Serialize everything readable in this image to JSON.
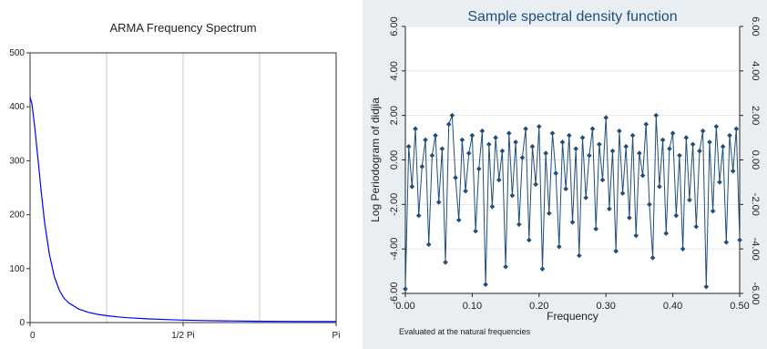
{
  "chart_data": [
    {
      "type": "line",
      "title": "ARMA Frequency Spectrum",
      "xlabel": "",
      "ylabel": "",
      "x_tick_labels": [
        "0",
        "1/2 Pi",
        "Pi"
      ],
      "y_ticks": [
        0,
        100,
        200,
        300,
        400,
        500
      ],
      "ylim": [
        0,
        500
      ],
      "xlim": [
        0,
        3.1416
      ],
      "grid": "vertical",
      "line_color": "#0000ff",
      "series": [
        {
          "x": [
            0,
            0.02,
            0.05,
            0.08,
            0.11,
            0.15,
            0.2,
            0.25,
            0.3,
            0.35,
            0.4,
            0.5,
            0.6,
            0.7,
            0.8,
            0.9,
            1.0,
            1.2,
            1.4,
            1.57,
            1.8,
            2.0,
            2.3,
            2.6,
            2.9,
            3.1416
          ],
          "y": [
            418,
            405,
            360,
            305,
            250,
            185,
            125,
            85,
            60,
            45,
            36,
            25,
            19,
            15,
            12.5,
            10.5,
            9,
            7,
            5.5,
            4.5,
            3.8,
            3.2,
            2.6,
            2.2,
            2,
            2
          ]
        }
      ]
    },
    {
      "type": "scatter",
      "title": "Sample spectral density function",
      "xlabel": "Frequency",
      "ylabel": "Log Periodogram of didjia",
      "note": "Evaluated at the natural frequencies",
      "x_tick_labels": [
        "0.00",
        "0.10",
        "0.20",
        "0.30",
        "0.40",
        "0.50"
      ],
      "y_tick_labels": [
        "-6.00",
        "-4.00",
        "-2.00",
        "0.00",
        "2.00",
        "4.00",
        "6.00"
      ],
      "xlim": [
        0,
        0.5
      ],
      "ylim": [
        -6,
        6
      ],
      "grid": "horizontal",
      "marker": "diamond",
      "connected": true,
      "series_color": "#1f4e79",
      "series": [
        {
          "x": [
            0.0,
            0.005,
            0.01,
            0.015,
            0.02,
            0.025,
            0.03,
            0.035,
            0.04,
            0.045,
            0.05,
            0.055,
            0.06,
            0.065,
            0.07,
            0.075,
            0.08,
            0.085,
            0.09,
            0.095,
            0.1,
            0.105,
            0.11,
            0.115,
            0.12,
            0.125,
            0.13,
            0.135,
            0.14,
            0.145,
            0.15,
            0.155,
            0.16,
            0.165,
            0.17,
            0.175,
            0.18,
            0.185,
            0.19,
            0.195,
            0.2,
            0.205,
            0.21,
            0.215,
            0.22,
            0.225,
            0.23,
            0.235,
            0.24,
            0.245,
            0.25,
            0.255,
            0.26,
            0.265,
            0.27,
            0.275,
            0.28,
            0.285,
            0.29,
            0.295,
            0.3,
            0.305,
            0.31,
            0.315,
            0.32,
            0.325,
            0.33,
            0.335,
            0.34,
            0.345,
            0.35,
            0.355,
            0.36,
            0.365,
            0.37,
            0.375,
            0.38,
            0.385,
            0.39,
            0.395,
            0.4,
            0.405,
            0.41,
            0.415,
            0.42,
            0.425,
            0.43,
            0.435,
            0.44,
            0.445,
            0.45,
            0.455,
            0.46,
            0.465,
            0.47,
            0.475,
            0.48,
            0.485,
            0.49,
            0.495,
            0.5
          ],
          "y": [
            -5.8,
            0.6,
            -1.2,
            1.4,
            -2.5,
            -0.3,
            0.9,
            -3.8,
            0.2,
            1.1,
            -1.9,
            0.5,
            -4.6,
            1.6,
            2.0,
            -0.8,
            -2.7,
            0.9,
            -1.4,
            0.3,
            1.1,
            -3.2,
            -0.4,
            1.3,
            -5.6,
            0.7,
            -2.1,
            1.0,
            -0.9,
            0.4,
            -4.8,
            1.2,
            -1.6,
            0.8,
            -2.9,
            0.1,
            1.4,
            -3.6,
            0.6,
            -1.1,
            1.5,
            -4.9,
            0.3,
            -2.4,
            1.2,
            -0.6,
            -3.9,
            0.8,
            -1.3,
            1.1,
            -2.8,
            0.5,
            -4.3,
            1.0,
            -1.7,
            0.2,
            1.4,
            -3.1,
            0.7,
            -0.9,
            1.9,
            -2.2,
            0.4,
            -4.1,
            1.3,
            -1.5,
            0.6,
            -2.6,
            1.1,
            -3.4,
            0.3,
            -0.7,
            1.6,
            -2.0,
            -4.4,
            2.0,
            -1.2,
            0.9,
            -3.3,
            0.5,
            1.2,
            -2.5,
            0.2,
            -4.0,
            1.0,
            -1.8,
            0.7,
            -3.0,
            0.4,
            1.3,
            -5.7,
            0.8,
            -2.3,
            1.5,
            -1.0,
            0.6,
            -3.7,
            1.1,
            -0.5,
            1.4,
            -3.6
          ]
        }
      ]
    }
  ]
}
